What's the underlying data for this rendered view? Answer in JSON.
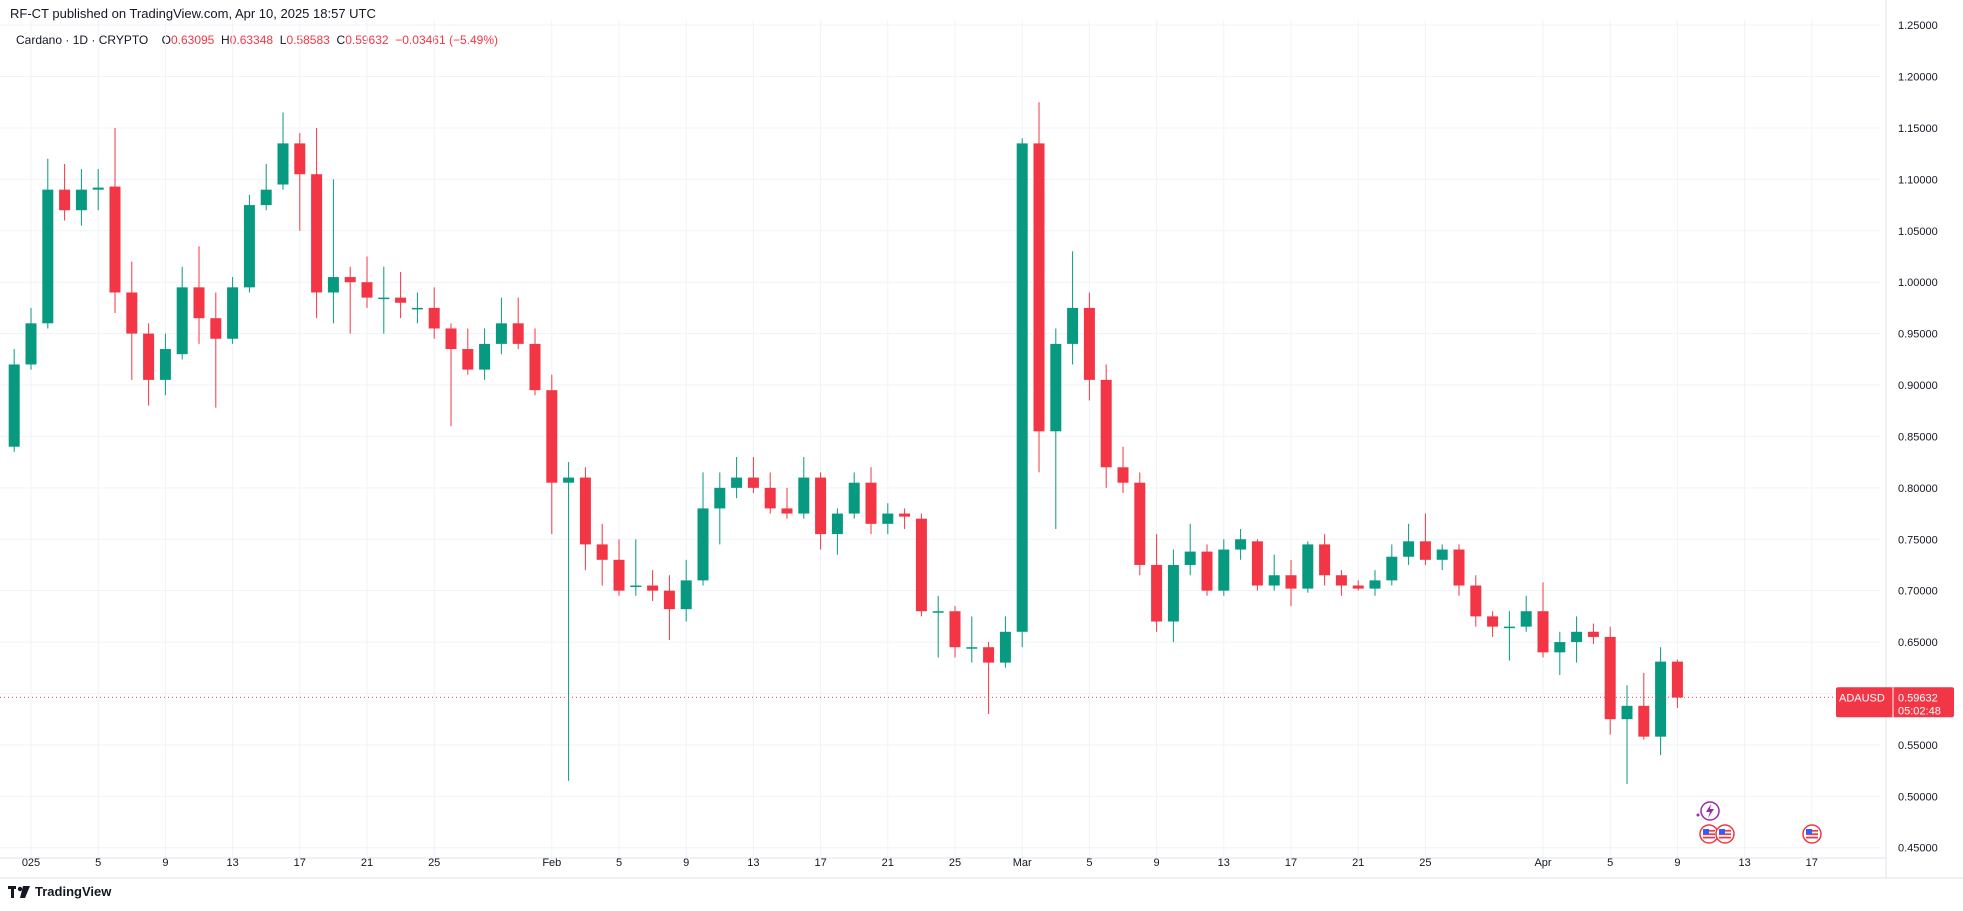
{
  "header": {
    "published_by": "RF-CT published on TradingView.com, Apr 10, 2025 18:57 UTC"
  },
  "legend": {
    "symbol": "Cardano · 1D · CRYPTO",
    "o_label": "O",
    "o_value": "0.63095",
    "h_label": "H",
    "h_value": "0.63348",
    "l_label": "L",
    "l_value": "0.58583",
    "c_label": "C",
    "c_value": "0.59632",
    "change": "−0.03461 (−5.49%)"
  },
  "price_badge": {
    "symbol": "ADAUSD",
    "price": "0.59632",
    "countdown": "05:02:48"
  },
  "footer": {
    "brand": "TradingView"
  },
  "colors": {
    "up": "#089981",
    "down": "#f23645",
    "grid": "#f0f3fa",
    "axis_text": "#131722"
  },
  "chart_data": {
    "type": "candlestick",
    "ylim": [
      0.44,
      1.255
    ],
    "y_ticks": [
      "1.25000",
      "1.20000",
      "1.15000",
      "1.10000",
      "1.05000",
      "1.00000",
      "0.95000",
      "0.90000",
      "0.85000",
      "0.80000",
      "0.75000",
      "0.70000",
      "0.65000",
      "0.60000",
      "0.55000",
      "0.50000",
      "0.45000"
    ],
    "x_ticks": [
      {
        "day": 1,
        "label": "025"
      },
      {
        "day": 5,
        "label": "5"
      },
      {
        "day": 9,
        "label": "9"
      },
      {
        "day": 13,
        "label": "13"
      },
      {
        "day": 17,
        "label": "17"
      },
      {
        "day": 21,
        "label": "21"
      },
      {
        "day": 25,
        "label": "25"
      },
      {
        "day": 32,
        "label": "Feb"
      },
      {
        "day": 36,
        "label": "5"
      },
      {
        "day": 40,
        "label": "9"
      },
      {
        "day": 44,
        "label": "13"
      },
      {
        "day": 48,
        "label": "17"
      },
      {
        "day": 52,
        "label": "21"
      },
      {
        "day": 56,
        "label": "25"
      },
      {
        "day": 60,
        "label": "Mar"
      },
      {
        "day": 64,
        "label": "5"
      },
      {
        "day": 68,
        "label": "9"
      },
      {
        "day": 72,
        "label": "13"
      },
      {
        "day": 76,
        "label": "17"
      },
      {
        "day": 80,
        "label": "21"
      },
      {
        "day": 84,
        "label": "25"
      },
      {
        "day": 91,
        "label": "Apr"
      },
      {
        "day": 95,
        "label": "5"
      },
      {
        "day": 99,
        "label": "9"
      },
      {
        "day": 103,
        "label": "13"
      },
      {
        "day": 107,
        "label": "17"
      }
    ],
    "candles": [
      {
        "day": 0,
        "o": 0.84,
        "h": 0.935,
        "l": 0.835,
        "c": 0.92
      },
      {
        "day": 1,
        "o": 0.92,
        "h": 0.975,
        "l": 0.915,
        "c": 0.96
      },
      {
        "day": 2,
        "o": 0.96,
        "h": 1.12,
        "l": 0.955,
        "c": 1.09
      },
      {
        "day": 3,
        "o": 1.09,
        "h": 1.115,
        "l": 1.06,
        "c": 1.07
      },
      {
        "day": 4,
        "o": 1.07,
        "h": 1.11,
        "l": 1.055,
        "c": 1.09
      },
      {
        "day": 5,
        "o": 1.09,
        "h": 1.11,
        "l": 1.07,
        "c": 1.092
      },
      {
        "day": 6,
        "o": 1.093,
        "h": 1.15,
        "l": 0.97,
        "c": 0.99
      },
      {
        "day": 7,
        "o": 0.99,
        "h": 1.02,
        "l": 0.905,
        "c": 0.95
      },
      {
        "day": 8,
        "o": 0.95,
        "h": 0.96,
        "l": 0.88,
        "c": 0.905
      },
      {
        "day": 9,
        "o": 0.905,
        "h": 0.95,
        "l": 0.89,
        "c": 0.935
      },
      {
        "day": 10,
        "o": 0.93,
        "h": 1.015,
        "l": 0.925,
        "c": 0.995
      },
      {
        "day": 11,
        "o": 0.995,
        "h": 1.035,
        "l": 0.94,
        "c": 0.965
      },
      {
        "day": 12,
        "o": 0.965,
        "h": 0.99,
        "l": 0.878,
        "c": 0.945
      },
      {
        "day": 13,
        "o": 0.945,
        "h": 1.005,
        "l": 0.94,
        "c": 0.995
      },
      {
        "day": 14,
        "o": 0.995,
        "h": 1.085,
        "l": 0.99,
        "c": 1.075
      },
      {
        "day": 15,
        "o": 1.075,
        "h": 1.115,
        "l": 1.07,
        "c": 1.09
      },
      {
        "day": 16,
        "o": 1.095,
        "h": 1.165,
        "l": 1.09,
        "c": 1.135
      },
      {
        "day": 17,
        "o": 1.135,
        "h": 1.145,
        "l": 1.05,
        "c": 1.105
      },
      {
        "day": 18,
        "o": 1.105,
        "h": 1.15,
        "l": 0.965,
        "c": 0.99
      },
      {
        "day": 19,
        "o": 0.99,
        "h": 1.1,
        "l": 0.96,
        "c": 1.005
      },
      {
        "day": 20,
        "o": 1.005,
        "h": 1.015,
        "l": 0.95,
        "c": 1.0
      },
      {
        "day": 21,
        "o": 1.0,
        "h": 1.025,
        "l": 0.975,
        "c": 0.985
      },
      {
        "day": 22,
        "o": 0.985,
        "h": 1.015,
        "l": 0.95,
        "c": 0.985
      },
      {
        "day": 23,
        "o": 0.985,
        "h": 1.01,
        "l": 0.965,
        "c": 0.98
      },
      {
        "day": 24,
        "o": 0.975,
        "h": 0.99,
        "l": 0.96,
        "c": 0.975
      },
      {
        "day": 25,
        "o": 0.975,
        "h": 0.995,
        "l": 0.945,
        "c": 0.955
      },
      {
        "day": 26,
        "o": 0.955,
        "h": 0.96,
        "l": 0.86,
        "c": 0.935
      },
      {
        "day": 27,
        "o": 0.935,
        "h": 0.955,
        "l": 0.91,
        "c": 0.915
      },
      {
        "day": 28,
        "o": 0.915,
        "h": 0.955,
        "l": 0.905,
        "c": 0.94
      },
      {
        "day": 29,
        "o": 0.94,
        "h": 0.985,
        "l": 0.93,
        "c": 0.96
      },
      {
        "day": 30,
        "o": 0.96,
        "h": 0.985,
        "l": 0.935,
        "c": 0.94
      },
      {
        "day": 31,
        "o": 0.94,
        "h": 0.955,
        "l": 0.89,
        "c": 0.895
      },
      {
        "day": 32,
        "o": 0.895,
        "h": 0.91,
        "l": 0.755,
        "c": 0.805
      },
      {
        "day": 33,
        "o": 0.805,
        "h": 0.825,
        "l": 0.515,
        "c": 0.81
      },
      {
        "day": 34,
        "o": 0.81,
        "h": 0.82,
        "l": 0.72,
        "c": 0.745
      },
      {
        "day": 35,
        "o": 0.745,
        "h": 0.765,
        "l": 0.705,
        "c": 0.73
      },
      {
        "day": 36,
        "o": 0.73,
        "h": 0.75,
        "l": 0.695,
        "c": 0.7
      },
      {
        "day": 37,
        "o": 0.705,
        "h": 0.75,
        "l": 0.695,
        "c": 0.705
      },
      {
        "day": 38,
        "o": 0.705,
        "h": 0.72,
        "l": 0.69,
        "c": 0.7
      },
      {
        "day": 39,
        "o": 0.7,
        "h": 0.715,
        "l": 0.652,
        "c": 0.682
      },
      {
        "day": 40,
        "o": 0.682,
        "h": 0.73,
        "l": 0.67,
        "c": 0.71
      },
      {
        "day": 41,
        "o": 0.71,
        "h": 0.815,
        "l": 0.705,
        "c": 0.78
      },
      {
        "day": 42,
        "o": 0.78,
        "h": 0.815,
        "l": 0.745,
        "c": 0.8
      },
      {
        "day": 43,
        "o": 0.8,
        "h": 0.83,
        "l": 0.79,
        "c": 0.81
      },
      {
        "day": 44,
        "o": 0.81,
        "h": 0.83,
        "l": 0.795,
        "c": 0.8
      },
      {
        "day": 45,
        "o": 0.8,
        "h": 0.815,
        "l": 0.775,
        "c": 0.78
      },
      {
        "day": 46,
        "o": 0.78,
        "h": 0.8,
        "l": 0.77,
        "c": 0.775
      },
      {
        "day": 47,
        "o": 0.775,
        "h": 0.83,
        "l": 0.77,
        "c": 0.81
      },
      {
        "day": 48,
        "o": 0.81,
        "h": 0.815,
        "l": 0.74,
        "c": 0.755
      },
      {
        "day": 49,
        "o": 0.755,
        "h": 0.78,
        "l": 0.735,
        "c": 0.775
      },
      {
        "day": 50,
        "o": 0.775,
        "h": 0.815,
        "l": 0.77,
        "c": 0.805
      },
      {
        "day": 51,
        "o": 0.805,
        "h": 0.82,
        "l": 0.755,
        "c": 0.765
      },
      {
        "day": 52,
        "o": 0.765,
        "h": 0.785,
        "l": 0.755,
        "c": 0.775
      },
      {
        "day": 53,
        "o": 0.775,
        "h": 0.78,
        "l": 0.76,
        "c": 0.772
      },
      {
        "day": 54,
        "o": 0.77,
        "h": 0.775,
        "l": 0.675,
        "c": 0.68
      },
      {
        "day": 55,
        "o": 0.68,
        "h": 0.695,
        "l": 0.635,
        "c": 0.68
      },
      {
        "day": 56,
        "o": 0.68,
        "h": 0.685,
        "l": 0.635,
        "c": 0.645
      },
      {
        "day": 57,
        "o": 0.645,
        "h": 0.675,
        "l": 0.63,
        "c": 0.645
      },
      {
        "day": 58,
        "o": 0.645,
        "h": 0.65,
        "l": 0.58,
        "c": 0.63
      },
      {
        "day": 59,
        "o": 0.63,
        "h": 0.675,
        "l": 0.625,
        "c": 0.66
      },
      {
        "day": 60,
        "o": 0.66,
        "h": 1.14,
        "l": 0.645,
        "c": 1.135
      },
      {
        "day": 61,
        "o": 1.135,
        "h": 1.175,
        "l": 0.815,
        "c": 0.855
      },
      {
        "day": 62,
        "o": 0.855,
        "h": 0.955,
        "l": 0.76,
        "c": 0.94
      },
      {
        "day": 63,
        "o": 0.94,
        "h": 1.03,
        "l": 0.92,
        "c": 0.975
      },
      {
        "day": 64,
        "o": 0.975,
        "h": 0.99,
        "l": 0.885,
        "c": 0.905
      },
      {
        "day": 65,
        "o": 0.905,
        "h": 0.92,
        "l": 0.8,
        "c": 0.82
      },
      {
        "day": 66,
        "o": 0.82,
        "h": 0.84,
        "l": 0.795,
        "c": 0.805
      },
      {
        "day": 67,
        "o": 0.805,
        "h": 0.815,
        "l": 0.715,
        "c": 0.725
      },
      {
        "day": 68,
        "o": 0.725,
        "h": 0.755,
        "l": 0.66,
        "c": 0.67
      },
      {
        "day": 69,
        "o": 0.67,
        "h": 0.74,
        "l": 0.65,
        "c": 0.725
      },
      {
        "day": 70,
        "o": 0.725,
        "h": 0.765,
        "l": 0.715,
        "c": 0.738
      },
      {
        "day": 71,
        "o": 0.738,
        "h": 0.745,
        "l": 0.695,
        "c": 0.7
      },
      {
        "day": 72,
        "o": 0.7,
        "h": 0.75,
        "l": 0.695,
        "c": 0.74
      },
      {
        "day": 73,
        "o": 0.74,
        "h": 0.76,
        "l": 0.73,
        "c": 0.75
      },
      {
        "day": 74,
        "o": 0.748,
        "h": 0.75,
        "l": 0.7,
        "c": 0.705
      },
      {
        "day": 75,
        "o": 0.705,
        "h": 0.735,
        "l": 0.7,
        "c": 0.715
      },
      {
        "day": 76,
        "o": 0.715,
        "h": 0.73,
        "l": 0.685,
        "c": 0.702
      },
      {
        "day": 77,
        "o": 0.702,
        "h": 0.748,
        "l": 0.698,
        "c": 0.745
      },
      {
        "day": 78,
        "o": 0.745,
        "h": 0.755,
        "l": 0.705,
        "c": 0.715
      },
      {
        "day": 79,
        "o": 0.715,
        "h": 0.72,
        "l": 0.695,
        "c": 0.705
      },
      {
        "day": 80,
        "o": 0.705,
        "h": 0.71,
        "l": 0.7,
        "c": 0.702
      },
      {
        "day": 81,
        "o": 0.702,
        "h": 0.72,
        "l": 0.695,
        "c": 0.71
      },
      {
        "day": 82,
        "o": 0.71,
        "h": 0.745,
        "l": 0.705,
        "c": 0.733
      },
      {
        "day": 83,
        "o": 0.733,
        "h": 0.765,
        "l": 0.725,
        "c": 0.748
      },
      {
        "day": 84,
        "o": 0.748,
        "h": 0.775,
        "l": 0.725,
        "c": 0.73
      },
      {
        "day": 85,
        "o": 0.73,
        "h": 0.745,
        "l": 0.72,
        "c": 0.74
      },
      {
        "day": 86,
        "o": 0.74,
        "h": 0.745,
        "l": 0.695,
        "c": 0.705
      },
      {
        "day": 87,
        "o": 0.705,
        "h": 0.715,
        "l": 0.665,
        "c": 0.675
      },
      {
        "day": 88,
        "o": 0.675,
        "h": 0.68,
        "l": 0.655,
        "c": 0.665
      },
      {
        "day": 89,
        "o": 0.665,
        "h": 0.68,
        "l": 0.632,
        "c": 0.665
      },
      {
        "day": 90,
        "o": 0.665,
        "h": 0.695,
        "l": 0.66,
        "c": 0.68
      },
      {
        "day": 91,
        "o": 0.68,
        "h": 0.708,
        "l": 0.635,
        "c": 0.64
      },
      {
        "day": 92,
        "o": 0.64,
        "h": 0.66,
        "l": 0.618,
        "c": 0.65
      },
      {
        "day": 93,
        "o": 0.65,
        "h": 0.675,
        "l": 0.63,
        "c": 0.66
      },
      {
        "day": 94,
        "o": 0.66,
        "h": 0.668,
        "l": 0.648,
        "c": 0.655
      },
      {
        "day": 95,
        "o": 0.655,
        "h": 0.665,
        "l": 0.56,
        "c": 0.575
      },
      {
        "day": 96,
        "o": 0.575,
        "h": 0.608,
        "l": 0.512,
        "c": 0.588
      },
      {
        "day": 97,
        "o": 0.588,
        "h": 0.62,
        "l": 0.555,
        "c": 0.558
      },
      {
        "day": 98,
        "o": 0.558,
        "h": 0.645,
        "l": 0.54,
        "c": 0.631
      },
      {
        "day": 99,
        "o": 0.631,
        "h": 0.633,
        "l": 0.586,
        "c": 0.596
      }
    ],
    "last_price": 0.59632
  }
}
